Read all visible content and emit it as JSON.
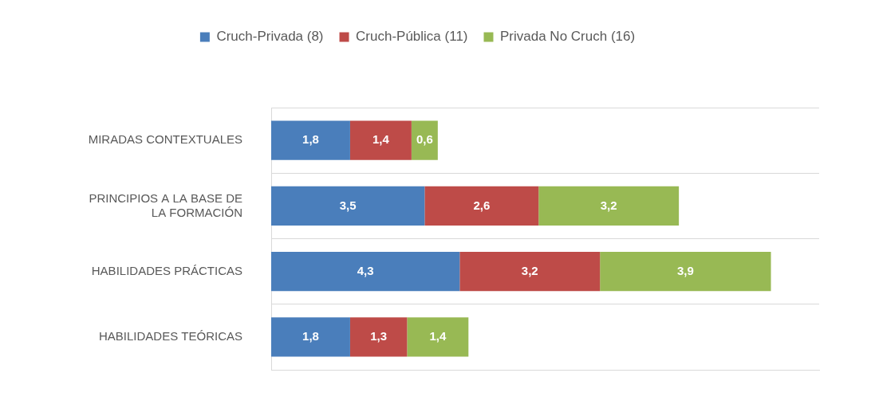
{
  "chart_data": {
    "type": "bar",
    "orientation": "horizontal",
    "stacked": true,
    "data_labels": true,
    "legend": "top",
    "grid": true,
    "tick_labels": "y",
    "xlim": [
      0,
      12.5
    ],
    "categories": [
      "MIRADAS CONTEXTUALES",
      "PRINCIPIOS A LA BASE DE LA FORMACIÓN",
      "HABILIDADES PRÁCTICAS",
      "HABILIDADES TEÓRICAS"
    ],
    "series": [
      {
        "name": "Cruch-Privada (8)",
        "color": "#4a7ebb",
        "values": [
          1.8,
          3.5,
          4.3,
          1.8
        ],
        "value_labels": [
          "1,8",
          "3,5",
          "4,3",
          "1,8"
        ]
      },
      {
        "name": "Cruch-Pública (11)",
        "color": "#be4b48",
        "values": [
          1.4,
          2.6,
          3.2,
          1.3
        ],
        "value_labels": [
          "1,4",
          "2,6",
          "3,2",
          "1,3"
        ]
      },
      {
        "name": "Privada No Cruch (16)",
        "color": "#98b954",
        "values": [
          0.6,
          3.2,
          3.9,
          1.4
        ],
        "value_labels": [
          "0,6",
          "3,2",
          "3,9",
          "1,4"
        ]
      }
    ]
  }
}
